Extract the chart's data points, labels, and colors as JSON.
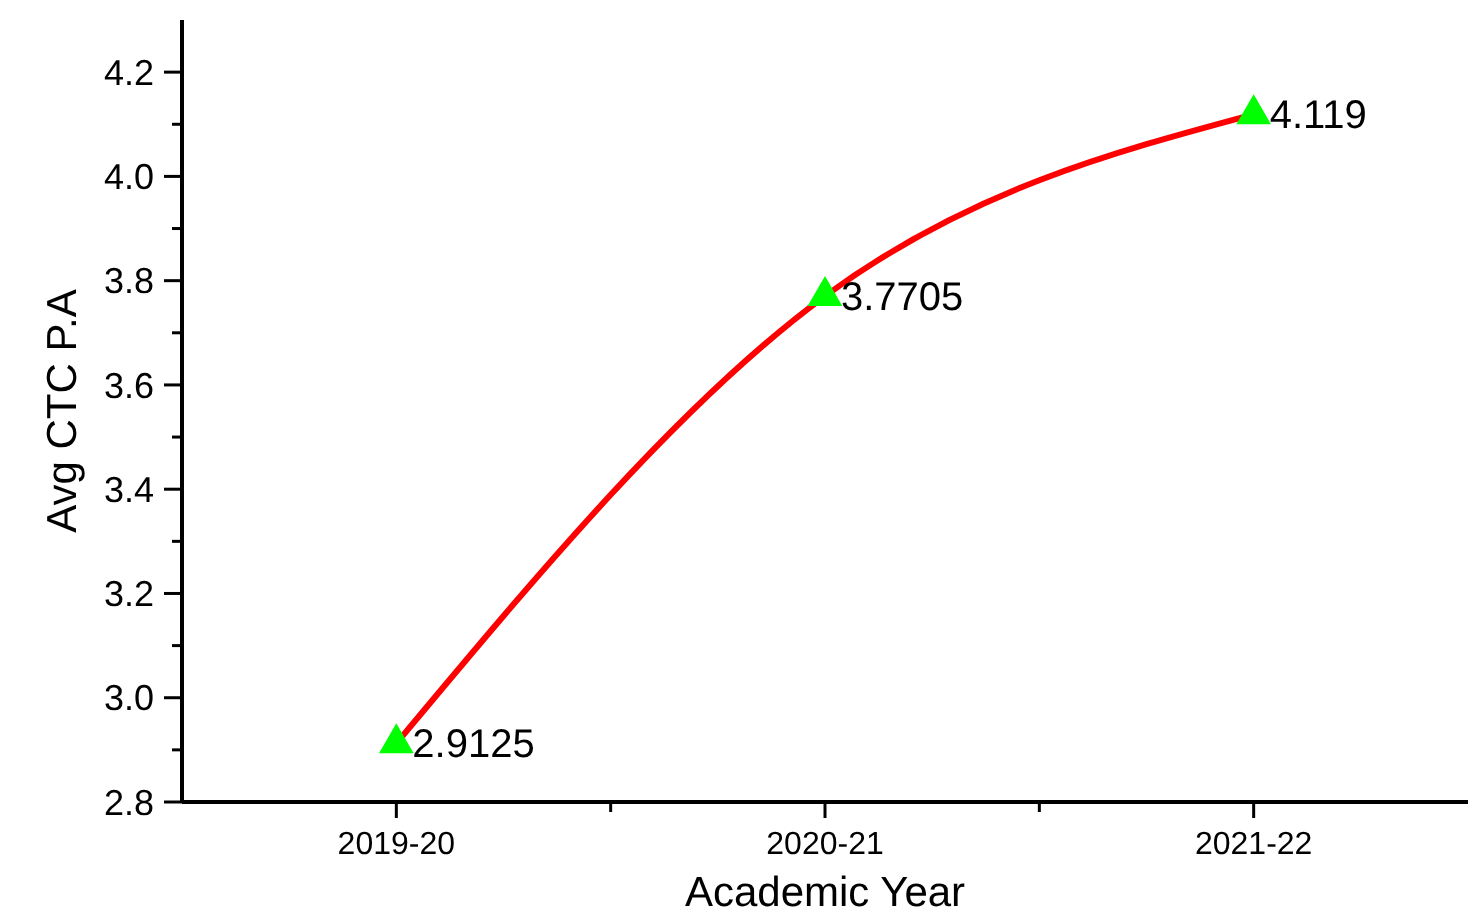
{
  "chart_data": {
    "type": "line",
    "xlabel": "Academic Year",
    "ylabel": "Avg CTC P.A",
    "categories": [
      "2019-20",
      "2020-21",
      "2021-22"
    ],
    "series": [
      {
        "color": "#ff0000",
        "marker": "none",
        "values": [
          2.9125,
          3.7705,
          4.119
        ]
      },
      {
        "type": "scatter",
        "color": "#00ff00",
        "x": [
          "2019-20",
          "2020-21",
          "2021-22"
        ],
        "values": [
          2.9125,
          3.7705,
          4.119
        ],
        "value_labels": [
          "2.9125",
          "3.7705",
          "4.119"
        ]
      }
    ],
    "marker": "triangle",
    "grid": false,
    "ylim": [
      2.8,
      4.3
    ],
    "yticks": [
      2.8,
      {
        "value": 2.9,
        "label": null
      },
      {
        "value": 3,
        "label": "3.0"
      },
      {
        "value": 3.1,
        "label": null
      },
      3.2,
      {
        "value": 3.3,
        "label": null
      },
      3.4,
      {
        "value": 3.5,
        "label": null
      },
      3.6,
      {
        "value": 3.7,
        "label": null
      },
      3.8,
      {
        "value": 3.9,
        "label": null
      },
      {
        "value": 4,
        "label": "4.0"
      },
      {
        "value": 4.1,
        "label": null
      },
      4.2
    ]
  }
}
